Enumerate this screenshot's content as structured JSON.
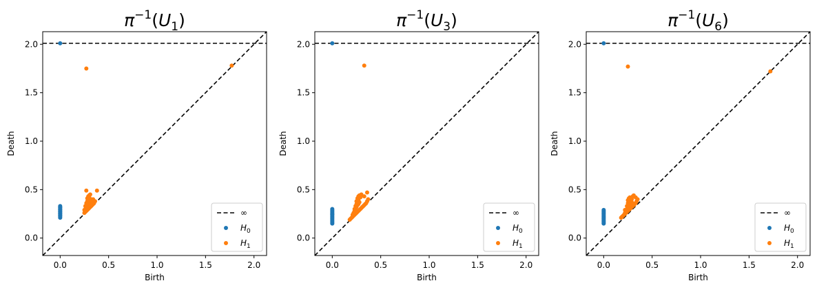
{
  "colors": {
    "h0": "#1f77b4",
    "h1": "#ff7f0e",
    "diag": "#000000"
  },
  "chart_data": [
    {
      "type": "scatter",
      "title": "π⁻¹(U₁)",
      "title_base": "π",
      "title_sup": "−1",
      "title_arg": "U",
      "title_sub": "1",
      "xlabel": "Birth",
      "ylabel": "Death",
      "xlim": [
        -0.18,
        2.13
      ],
      "ylim": [
        -0.18,
        2.13
      ],
      "xticks": [
        0.0,
        0.5,
        1.0,
        1.5,
        2.0
      ],
      "yticks": [
        0.0,
        0.5,
        1.0,
        1.5,
        2.0
      ],
      "xtick_labels": [
        "0.0",
        "0.5",
        "1.0",
        "1.5",
        "2.0"
      ],
      "ytick_labels": [
        "0.0",
        "0.5",
        "1.0",
        "1.5",
        "2.0"
      ],
      "infinity_line": 2.01,
      "diagonal": true,
      "legend": {
        "placement": "lower-right",
        "entries": [
          "∞",
          "H0",
          "H1"
        ]
      },
      "series": [
        {
          "name": "H0",
          "color": "#1f77b4",
          "x": [
            0,
            0,
            0,
            0,
            0,
            0,
            0,
            0,
            0,
            0,
            0,
            0,
            0,
            0,
            0,
            0,
            0,
            0,
            0
          ],
          "y": [
            2.01,
            0.21,
            0.22,
            0.23,
            0.24,
            0.25,
            0.26,
            0.27,
            0.28,
            0.29,
            0.3,
            0.31,
            0.32,
            0.33,
            0.235,
            0.255,
            0.275,
            0.295,
            0.315
          ]
        },
        {
          "name": "H1",
          "color": "#ff7f0e",
          "x": [
            0.27,
            1.77,
            0.27,
            0.38,
            0.25,
            0.26,
            0.27,
            0.28,
            0.29,
            0.3,
            0.31,
            0.32,
            0.33,
            0.34,
            0.35,
            0.26,
            0.27,
            0.28,
            0.29,
            0.3,
            0.31,
            0.32,
            0.33,
            0.27,
            0.28,
            0.29,
            0.3,
            0.31,
            0.32,
            0.28,
            0.29,
            0.3,
            0.29,
            0.3,
            0.31,
            0.34,
            0.36,
            0.25,
            0.26,
            0.27,
            0.28,
            0.3,
            0.32
          ],
          "y": [
            1.75,
            1.78,
            0.49,
            0.49,
            0.26,
            0.27,
            0.28,
            0.29,
            0.3,
            0.31,
            0.32,
            0.33,
            0.34,
            0.35,
            0.36,
            0.3,
            0.31,
            0.32,
            0.33,
            0.34,
            0.35,
            0.36,
            0.37,
            0.34,
            0.35,
            0.36,
            0.37,
            0.38,
            0.39,
            0.38,
            0.4,
            0.41,
            0.43,
            0.44,
            0.45,
            0.4,
            0.38,
            0.29,
            0.33,
            0.36,
            0.41,
            0.42,
            0.4
          ]
        }
      ]
    },
    {
      "type": "scatter",
      "title": "π⁻¹(U₃)",
      "title_base": "π",
      "title_sup": "−1",
      "title_arg": "U",
      "title_sub": "3",
      "xlabel": "Birth",
      "ylabel": "Death",
      "xlim": [
        -0.18,
        2.13
      ],
      "ylim": [
        -0.18,
        2.13
      ],
      "xticks": [
        0.0,
        0.5,
        1.0,
        1.5,
        2.0
      ],
      "yticks": [
        0.0,
        0.5,
        1.0,
        1.5,
        2.0
      ],
      "xtick_labels": [
        "0.0",
        "0.5",
        "1.0",
        "1.5",
        "2.0"
      ],
      "ytick_labels": [
        "0.0",
        "0.5",
        "1.0",
        "1.5",
        "2.0"
      ],
      "infinity_line": 2.01,
      "diagonal": true,
      "legend": {
        "placement": "lower-right",
        "entries": [
          "∞",
          "H0",
          "H1"
        ]
      },
      "series": [
        {
          "name": "H0",
          "color": "#1f77b4",
          "x": [
            0,
            0,
            0,
            0,
            0,
            0,
            0,
            0,
            0,
            0,
            0,
            0,
            0,
            0,
            0,
            0,
            0,
            0
          ],
          "y": [
            2.01,
            0.15,
            0.16,
            0.17,
            0.18,
            0.19,
            0.2,
            0.21,
            0.22,
            0.23,
            0.24,
            0.25,
            0.26,
            0.27,
            0.28,
            0.29,
            0.3,
            0.245
          ]
        },
        {
          "name": "H1",
          "color": "#ff7f0e",
          "x": [
            0.33,
            0.18,
            0.19,
            0.2,
            0.21,
            0.22,
            0.23,
            0.24,
            0.25,
            0.26,
            0.27,
            0.28,
            0.29,
            0.3,
            0.31,
            0.32,
            0.33,
            0.34,
            0.35,
            0.36,
            0.37,
            0.21,
            0.22,
            0.23,
            0.24,
            0.25,
            0.26,
            0.27,
            0.28,
            0.23,
            0.24,
            0.25,
            0.26,
            0.27,
            0.28,
            0.25,
            0.26,
            0.27,
            0.28,
            0.29,
            0.3,
            0.36,
            0.33
          ],
          "y": [
            1.78,
            0.19,
            0.2,
            0.21,
            0.22,
            0.23,
            0.24,
            0.25,
            0.26,
            0.27,
            0.28,
            0.29,
            0.3,
            0.31,
            0.32,
            0.33,
            0.34,
            0.35,
            0.36,
            0.38,
            0.4,
            0.24,
            0.26,
            0.28,
            0.3,
            0.32,
            0.34,
            0.35,
            0.37,
            0.3,
            0.33,
            0.35,
            0.37,
            0.39,
            0.42,
            0.38,
            0.41,
            0.43,
            0.44,
            0.42,
            0.45,
            0.47,
            0.43
          ]
        }
      ]
    },
    {
      "type": "scatter",
      "title": "π⁻¹(U₆)",
      "title_base": "π",
      "title_sup": "−1",
      "title_arg": "U",
      "title_sub": "6",
      "xlabel": "Birth",
      "ylabel": "Death",
      "xlim": [
        -0.18,
        2.13
      ],
      "ylim": [
        -0.18,
        2.13
      ],
      "xticks": [
        0.0,
        0.5,
        1.0,
        1.5,
        2.0
      ],
      "yticks": [
        0.0,
        0.5,
        1.0,
        1.5,
        2.0
      ],
      "xtick_labels": [
        "0.0",
        "0.5",
        "1.0",
        "1.5",
        "2.0"
      ],
      "ytick_labels": [
        "0.0",
        "0.5",
        "1.0",
        "1.5",
        "2.0"
      ],
      "infinity_line": 2.01,
      "diagonal": true,
      "legend": {
        "placement": "lower-right",
        "entries": [
          "∞",
          "H0",
          "H1"
        ]
      },
      "series": [
        {
          "name": "H0",
          "color": "#1f77b4",
          "x": [
            0,
            0,
            0,
            0,
            0,
            0,
            0,
            0,
            0,
            0,
            0,
            0,
            0,
            0,
            0,
            0
          ],
          "y": [
            2.01,
            0.15,
            0.16,
            0.17,
            0.18,
            0.19,
            0.2,
            0.21,
            0.22,
            0.23,
            0.24,
            0.25,
            0.26,
            0.27,
            0.28,
            0.29
          ]
        },
        {
          "name": "H1",
          "color": "#ff7f0e",
          "x": [
            0.25,
            1.72,
            0.18,
            0.19,
            0.2,
            0.21,
            0.22,
            0.23,
            0.24,
            0.25,
            0.26,
            0.27,
            0.28,
            0.29,
            0.3,
            0.31,
            0.32,
            0.33,
            0.34,
            0.35,
            0.22,
            0.23,
            0.24,
            0.25,
            0.26,
            0.27,
            0.28,
            0.29,
            0.3,
            0.24,
            0.25,
            0.26,
            0.27,
            0.28,
            0.26,
            0.27,
            0.29,
            0.3,
            0.31,
            0.22,
            0.33,
            0.25
          ],
          "y": [
            1.77,
            1.72,
            0.21,
            0.22,
            0.23,
            0.24,
            0.25,
            0.26,
            0.27,
            0.28,
            0.29,
            0.3,
            0.31,
            0.32,
            0.33,
            0.34,
            0.35,
            0.36,
            0.38,
            0.4,
            0.26,
            0.28,
            0.3,
            0.31,
            0.33,
            0.34,
            0.35,
            0.37,
            0.36,
            0.33,
            0.36,
            0.38,
            0.39,
            0.41,
            0.41,
            0.42,
            0.4,
            0.43,
            0.44,
            0.29,
            0.42,
            0.39
          ]
        }
      ]
    }
  ]
}
